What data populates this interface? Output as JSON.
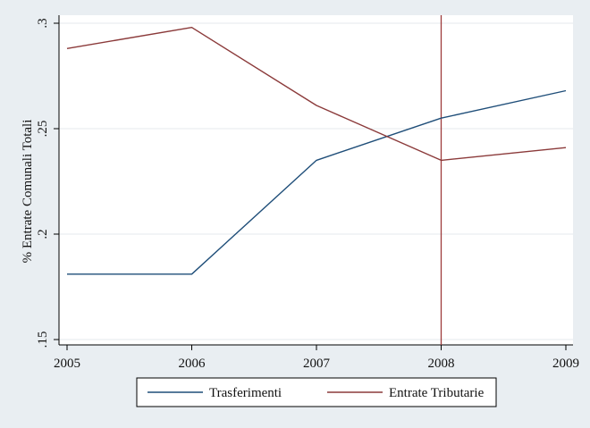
{
  "chart_data": {
    "type": "line",
    "title": "",
    "xlabel": "",
    "ylabel": "% Entrate Comunali Totali",
    "x": [
      2005,
      2006,
      2007,
      2008,
      2009
    ],
    "xlim": [
      2005,
      2009
    ],
    "ylim": [
      0.15,
      0.3
    ],
    "x_ticks": [
      "2005",
      "2006",
      "2007",
      "2008",
      "2009"
    ],
    "y_ticks": [
      {
        "value": 0.15,
        "label": ".15"
      },
      {
        "value": 0.2,
        "label": ".2"
      },
      {
        "value": 0.25,
        "label": ".25"
      },
      {
        "value": 0.3,
        "label": ".3"
      }
    ],
    "grid": "horizontal",
    "series": [
      {
        "name": "Trasferimenti",
        "color": "#1f4e79",
        "values": [
          0.181,
          0.181,
          0.235,
          0.255,
          0.268
        ]
      },
      {
        "name": "Entrate Tributarie",
        "color": "#8b3a3a",
        "values": [
          0.288,
          0.298,
          0.261,
          0.235,
          0.241
        ]
      }
    ],
    "reference_line": {
      "x": 2008,
      "color": "#9e3b3b"
    },
    "legend": {
      "position": "bottom"
    }
  }
}
